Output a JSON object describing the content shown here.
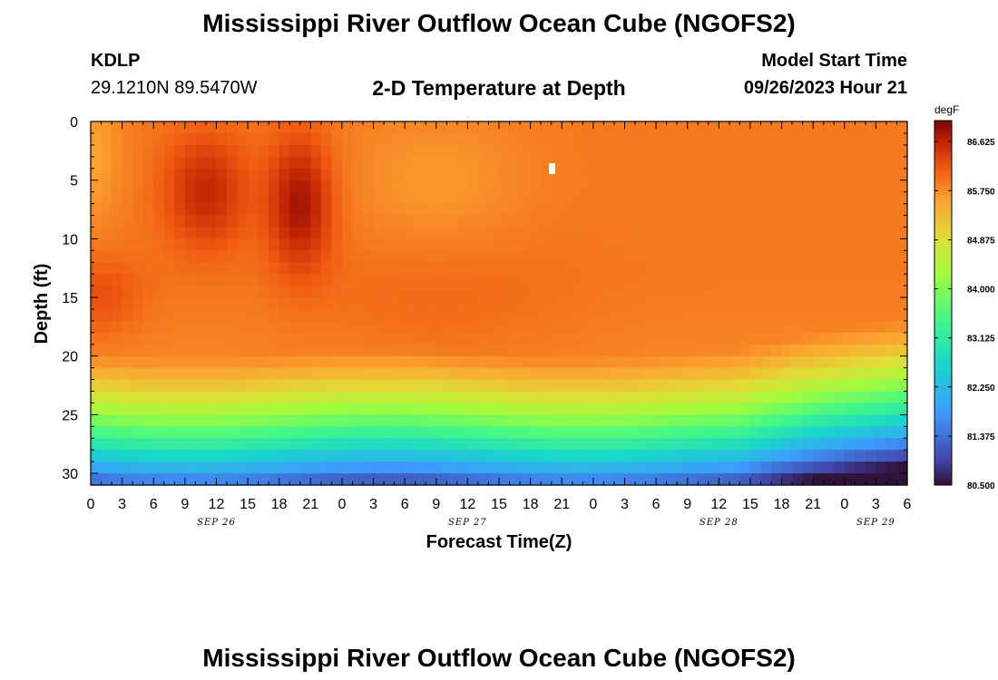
{
  "header": {
    "title": "Mississippi River Outflow Ocean Cube (NGOFS2)",
    "station_id": "KDLP",
    "station_coords": "29.1210N  89.5470W",
    "subtitle": "2-D Temperature at Depth",
    "model_start_label": "Model Start Time",
    "model_start_value": "09/26/2023 Hour 21"
  },
  "footer": {
    "title": "Mississippi River Outflow Ocean Cube (NGOFS2)"
  },
  "chart_data": {
    "type": "heatmap",
    "title": "2-D Temperature at Depth",
    "xlabel": "Forecast Time(Z)",
    "ylabel": "Depth (ft)",
    "x_tick_labels": [
      "0",
      "3",
      "6",
      "9",
      "12",
      "15",
      "18",
      "21",
      "0",
      "3",
      "6",
      "9",
      "12",
      "15",
      "18",
      "21",
      "0",
      "3",
      "6",
      "9",
      "12",
      "15",
      "18",
      "21",
      "0",
      "3",
      "6"
    ],
    "x_date_labels": [
      {
        "label": "SEP 26",
        "hour_index": 12
      },
      {
        "label": "SEP 27",
        "hour_index": 36
      },
      {
        "label": "SEP 28",
        "hour_index": 60
      },
      {
        "label": "SEP 29",
        "hour_index": 75
      }
    ],
    "xlim": [
      0,
      78
    ],
    "ylim": [
      0,
      31
    ],
    "y_ticks": [
      0,
      5,
      10,
      15,
      20,
      25,
      30
    ],
    "y_inverted": true,
    "colorbar": {
      "unit": "degF",
      "min": 80.5,
      "max": 87.0,
      "tick_labels": [
        "86.625",
        "85.750",
        "84.875",
        "84.000",
        "83.125",
        "82.250",
        "81.375",
        "80.500"
      ],
      "tick_values": [
        86.625,
        85.75,
        84.875,
        84.0,
        83.125,
        82.25,
        81.375,
        80.5
      ]
    },
    "grid": false,
    "notes_values_approx": "Warm core (~86.6-87 degF) near 3-10 ft at hours 9-14 and 18-24; ~86 degF over upper 18 ft; cooling to ~82-83 degF near 27-30 ft; coldest ~80.5 degF at bottom after hour 70"
  }
}
